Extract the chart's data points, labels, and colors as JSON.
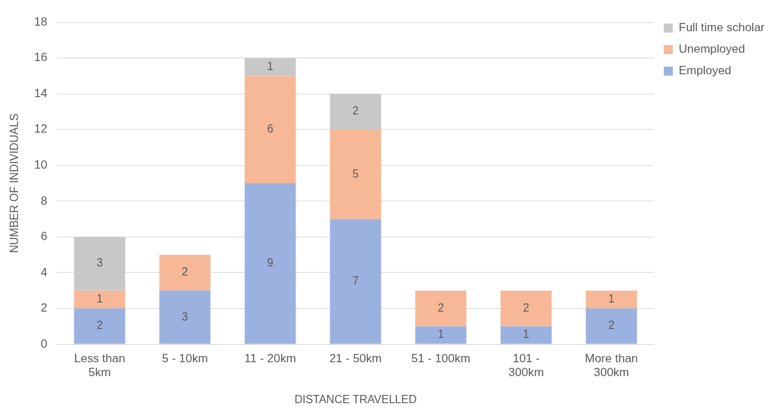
{
  "chart_data": {
    "type": "bar",
    "stacked": true,
    "xlabel": "DISTANCE TRAVELLED",
    "ylabel": "NUMBER OF INDIVIDUALS",
    "categories": [
      "Less than 5km",
      "5 - 10km",
      "11 - 20km",
      "21 - 50km",
      "51 - 100km",
      "101 - 300km",
      "More than 300km"
    ],
    "series": [
      {
        "name": "Employed",
        "color": "#9bb1e0",
        "values": [
          2,
          3,
          9,
          7,
          1,
          1,
          2
        ]
      },
      {
        "name": "Unemployed",
        "color": "#f6b896",
        "values": [
          1,
          2,
          6,
          5,
          2,
          2,
          1
        ]
      },
      {
        "name": "Full time scholar",
        "color": "#c8c8c8",
        "values": [
          3,
          null,
          1,
          2,
          null,
          null,
          null
        ]
      }
    ],
    "ylim": [
      0,
      18
    ],
    "yticks": [
      0,
      2,
      4,
      6,
      8,
      10,
      12,
      14,
      16,
      18
    ],
    "grid": "y",
    "legend": "right",
    "data_labels": true
  }
}
